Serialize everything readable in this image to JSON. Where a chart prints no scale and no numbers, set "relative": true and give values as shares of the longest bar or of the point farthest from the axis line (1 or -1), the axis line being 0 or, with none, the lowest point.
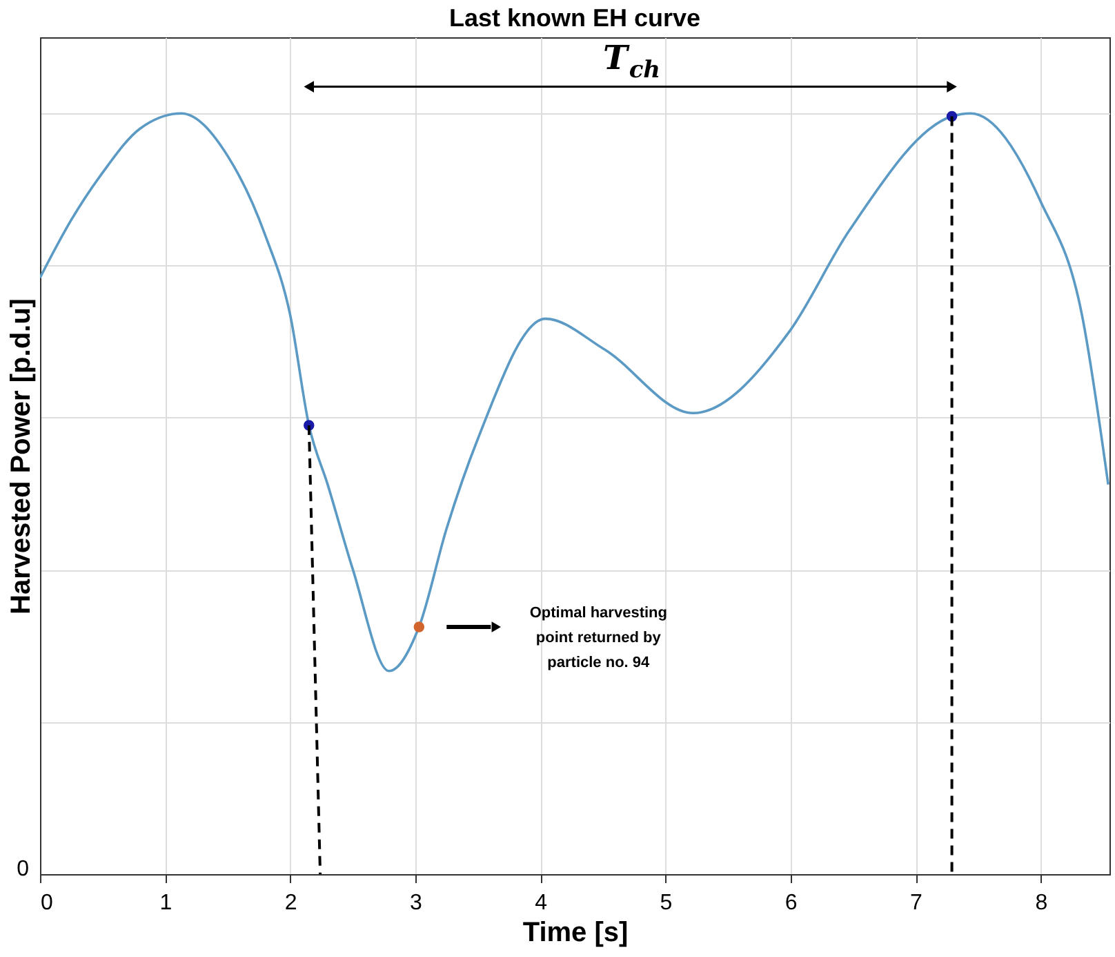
{
  "chart_data": {
    "type": "line",
    "title": "Last known EH curve",
    "xlabel": "Time [s]",
    "ylabel": "Harvested Power [p.d.u]",
    "relative": true,
    "xlim": [
      0,
      8.55
    ],
    "xticks": [
      0,
      1,
      2,
      3,
      4,
      5,
      6,
      7,
      8
    ],
    "grid": true,
    "series": [
      {
        "type": "line",
        "color": "#5b9ac4",
        "line_style": "solid",
        "x": [
          0,
          0.25,
          0.5,
          0.8,
          1.13,
          1.5,
          1.8,
          2.0,
          2.15,
          2.3,
          2.5,
          2.79,
          3.03,
          3.25,
          3.5,
          4.04,
          4.51,
          5.22,
          5.99,
          6.47,
          7.29,
          7.44,
          8.0,
          8.33,
          8.54
        ],
        "values": [
          0.784,
          0.86,
          0.922,
          0.98,
          1.0,
          0.944,
          0.84,
          0.735,
          0.59,
          0.512,
          0.401,
          0.267,
          0.325,
          0.454,
          0.572,
          0.73,
          0.69,
          0.606,
          0.713,
          0.846,
          0.996,
          1.0,
          0.884,
          0.735,
          0.512
        ]
      },
      {
        "type": "scatter",
        "color": "#1a1aa8",
        "marker": "circle",
        "x": [
          2.15,
          7.29
        ],
        "values": [
          0.59,
          0.996
        ]
      },
      {
        "type": "scatter",
        "color": "#d2652d",
        "marker": "circle",
        "x": [
          3.03
        ],
        "values": [
          0.325
        ]
      },
      {
        "type": "line",
        "color": "#000000",
        "line_style": "dashed",
        "x": [
          2.15,
          2.24
        ],
        "values": [
          0.59,
          0
        ]
      },
      {
        "type": "line",
        "color": "#000000",
        "line_style": "dashed",
        "x": [
          7.29,
          7.29
        ],
        "values": [
          0.996,
          0
        ]
      }
    ],
    "annotations": [
      "T$_{ch}$",
      "Optimal harvesting point returned by particle no. 94",
      "0"
    ]
  }
}
